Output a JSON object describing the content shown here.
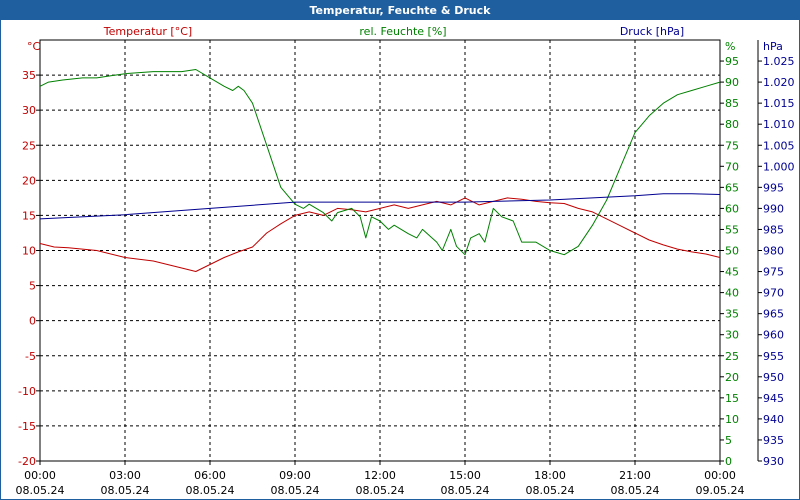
{
  "chart_data": {
    "type": "line",
    "title": "Temperatur, Feuchte & Druck",
    "colors": {
      "temperature": "#c00000",
      "humidity": "#008000",
      "pressure": "#000090",
      "title_bg": "#1f5fa0"
    },
    "axes": {
      "temperature": {
        "label": "Temperatur [°C]",
        "unit": "°C",
        "range": [
          -20,
          40
        ],
        "ticks": [
          "-20",
          "-15",
          "-10",
          "-5",
          "0",
          "5",
          "10",
          "15",
          "20",
          "25",
          "30",
          "35"
        ]
      },
      "humidity": {
        "label": "rel. Feuchte [%]",
        "unit": "%",
        "range": [
          0,
          100
        ],
        "ticks": [
          "0",
          "5",
          "10",
          "15",
          "20",
          "25",
          "30",
          "35",
          "40",
          "45",
          "50",
          "55",
          "60",
          "65",
          "70",
          "75",
          "80",
          "85",
          "90",
          "95"
        ]
      },
      "pressure": {
        "label": "Druck [hPa]",
        "unit": "hPa",
        "range": [
          930,
          1030
        ],
        "ticks": [
          "930",
          "935",
          "940",
          "945",
          "950",
          "955",
          "960",
          "965",
          "970",
          "975",
          "980",
          "985",
          "990",
          "995",
          "1.000",
          "1.005",
          "1.010",
          "1.015",
          "1.020",
          "1.025"
        ]
      }
    },
    "x_range_hours": [
      0,
      24
    ],
    "x_ticks": [
      {
        "time": "00:00",
        "date": "08.05.24"
      },
      {
        "time": "03:00",
        "date": "08.05.24"
      },
      {
        "time": "06:00",
        "date": "08.05.24"
      },
      {
        "time": "09:00",
        "date": "08.05.24"
      },
      {
        "time": "12:00",
        "date": "08.05.24"
      },
      {
        "time": "15:00",
        "date": "08.05.24"
      },
      {
        "time": "18:00",
        "date": "08.05.24"
      },
      {
        "time": "21:00",
        "date": "08.05.24"
      },
      {
        "time": "00:00",
        "date": "09.05.24"
      }
    ],
    "series": [
      {
        "name": "Temperatur",
        "axis": "temperature",
        "hours": [
          0,
          0.5,
          1,
          1.5,
          2,
          3,
          4,
          5,
          5.5,
          6,
          6.5,
          7,
          7.5,
          8,
          8.5,
          9,
          9.5,
          10,
          10.5,
          11,
          11.5,
          12,
          12.5,
          13,
          13.5,
          14,
          14.5,
          15,
          15.5,
          16,
          16.5,
          17,
          17.5,
          18,
          18.5,
          19,
          19.5,
          20,
          20.5,
          21,
          21.5,
          22,
          22.5,
          23,
          23.5,
          24
        ],
        "values": [
          11,
          10.5,
          10.4,
          10.2,
          10,
          9,
          8.5,
          7.5,
          7,
          8,
          9,
          9.8,
          10.5,
          12.5,
          13.8,
          15,
          15.5,
          15,
          16,
          15.8,
          15.5,
          16,
          16.5,
          16,
          16.5,
          17,
          16.5,
          17.5,
          16.5,
          17,
          17.5,
          17.3,
          17,
          16.8,
          16.7,
          16,
          15.5,
          14.5,
          13.5,
          12.5,
          11.5,
          10.8,
          10.2,
          9.8,
          9.5,
          9
        ]
      },
      {
        "name": "rel. Feuchte",
        "axis": "humidity",
        "hours": [
          0,
          0.3,
          0.8,
          1.5,
          2,
          2.5,
          3,
          4,
          5,
          5.5,
          6,
          6.5,
          6.8,
          7,
          7.2,
          7.5,
          8,
          8.5,
          9,
          9.3,
          9.5,
          10,
          10.3,
          10.5,
          11,
          11.3,
          11.5,
          11.7,
          12,
          12.3,
          12.5,
          13,
          13.3,
          13.5,
          14,
          14.2,
          14.5,
          14.7,
          15,
          15.2,
          15.5,
          15.7,
          16,
          16.3,
          16.7,
          17,
          17.5,
          18,
          18.5,
          19,
          19.5,
          20,
          20.5,
          21,
          21.5,
          22,
          22.5,
          23,
          23.5,
          24
        ],
        "values": [
          89,
          90,
          90.5,
          91,
          91,
          91.5,
          92,
          92.5,
          92.5,
          93,
          91,
          89,
          88,
          89,
          88,
          85,
          75,
          65,
          61,
          60,
          61,
          59,
          57,
          59,
          60,
          58,
          53,
          58,
          57,
          55,
          56,
          54,
          53,
          55,
          52,
          50,
          55,
          51,
          49,
          53,
          54,
          52,
          60,
          58,
          57,
          52,
          52,
          50,
          49,
          51,
          56,
          62,
          70,
          78,
          82,
          85,
          87,
          88,
          89,
          90
        ]
      },
      {
        "name": "Druck",
        "axis": "pressure",
        "hours": [
          0,
          3,
          6,
          9,
          12,
          15,
          18,
          21,
          22,
          23,
          24
        ],
        "values": [
          987.5,
          988.5,
          990,
          991.5,
          991.5,
          991.5,
          992,
          993,
          993.5,
          993.5,
          993.3
        ]
      }
    ]
  }
}
